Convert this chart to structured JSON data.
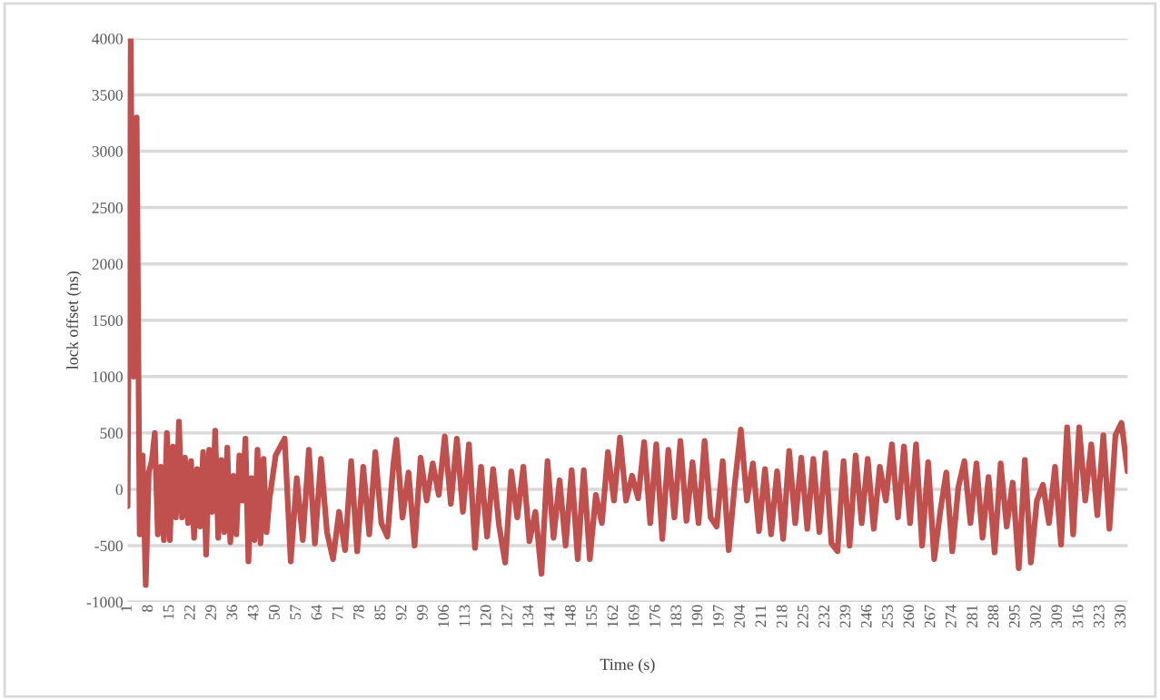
{
  "chart_data": {
    "type": "line",
    "xlabel": "Time (s)",
    "ylabel": "lock offset (ns)",
    "x": [
      1,
      2,
      3,
      4,
      5,
      6,
      7,
      8,
      9,
      10,
      11,
      12,
      13,
      14,
      15,
      16,
      17,
      18,
      19,
      20,
      21,
      22,
      23,
      24,
      25,
      26,
      27,
      28,
      29,
      30,
      31,
      32,
      33,
      34,
      35,
      36,
      37,
      38,
      39,
      40,
      41,
      42,
      43,
      44,
      45,
      46,
      47,
      48,
      50,
      53,
      55,
      57,
      59,
      61,
      63,
      65,
      67,
      69,
      71,
      73,
      75,
      77,
      79,
      81,
      83,
      85,
      87,
      89,
      90,
      92,
      94,
      96,
      98,
      100,
      102,
      104,
      106,
      108,
      110,
      112,
      114,
      116,
      118,
      120,
      122,
      124,
      126,
      128,
      130,
      132,
      134,
      136,
      138,
      140,
      142,
      144,
      146,
      148,
      150,
      152,
      154,
      156,
      158,
      160,
      162,
      164,
      166,
      168,
      170,
      172,
      174,
      176,
      178,
      180,
      182,
      184,
      186,
      188,
      190,
      192,
      194,
      196,
      198,
      200,
      202,
      204,
      206,
      208,
      210,
      212,
      214,
      216,
      218,
      220,
      222,
      224,
      226,
      228,
      230,
      232,
      234,
      236,
      238,
      240,
      242,
      244,
      246,
      248,
      250,
      252,
      254,
      256,
      258,
      260,
      262,
      264,
      266,
      268,
      270,
      272,
      274,
      276,
      278,
      280,
      282,
      284,
      286,
      288,
      290,
      292,
      294,
      296,
      298,
      300,
      302,
      304,
      306,
      308,
      310,
      312,
      314,
      316,
      318,
      320,
      322,
      324,
      326,
      328,
      330,
      332
    ],
    "series": [
      {
        "color": "#c0504d",
        "values": [
          -150,
          4000,
          1000,
          3300,
          -400,
          300,
          -850,
          150,
          250,
          500,
          -400,
          200,
          -450,
          500,
          -450,
          380,
          -250,
          600,
          -250,
          280,
          -300,
          250,
          -430,
          180,
          -330,
          330,
          -580,
          350,
          -200,
          520,
          -430,
          260,
          -380,
          370,
          -470,
          120,
          -400,
          300,
          -100,
          450,
          -640,
          100,
          -450,
          350,
          -480,
          270,
          -380,
          -80,
          300,
          450,
          -640,
          100,
          -450,
          350,
          -480,
          270,
          -380,
          -620,
          -200,
          -540,
          250,
          -550,
          200,
          -400,
          330,
          -300,
          -420,
          230,
          440,
          -250,
          150,
          -500,
          280,
          -100,
          230,
          -50,
          470,
          -130,
          450,
          -200,
          400,
          -520,
          200,
          -420,
          180,
          -330,
          -650,
          160,
          -250,
          200,
          -460,
          -200,
          -750,
          250,
          -430,
          80,
          -500,
          170,
          -620,
          170,
          -620,
          -50,
          -300,
          330,
          -100,
          460,
          -100,
          120,
          -80,
          420,
          -300,
          400,
          -440,
          350,
          -250,
          430,
          -280,
          240,
          -300,
          430,
          -250,
          -330,
          250,
          -540,
          50,
          530,
          -100,
          230,
          -370,
          180,
          -400,
          160,
          -440,
          340,
          -300,
          280,
          -350,
          270,
          -380,
          320,
          -480,
          -550,
          250,
          -500,
          300,
          -300,
          270,
          -350,
          200,
          -100,
          400,
          -250,
          380,
          -300,
          400,
          -500,
          240,
          -620,
          -200,
          150,
          -550,
          20,
          250,
          -300,
          230,
          -430,
          110,
          -560,
          230,
          -330,
          60,
          -700,
          260,
          -650,
          -100,
          40,
          -300,
          200,
          -490,
          550,
          -400,
          550,
          -100,
          400,
          -230,
          480,
          -350,
          480,
          590,
          160
        ]
      }
    ],
    "xlim": [
      1,
      332
    ],
    "xticks": [
      1,
      8,
      15,
      22,
      29,
      36,
      43,
      50,
      57,
      64,
      71,
      78,
      85,
      92,
      99,
      106,
      113,
      120,
      127,
      134,
      141,
      148,
      155,
      162,
      169,
      176,
      183,
      190,
      197,
      204,
      211,
      218,
      225,
      232,
      239,
      246,
      253,
      260,
      267,
      274,
      281,
      288,
      295,
      302,
      309,
      316,
      323,
      330
    ],
    "ylim": [
      -1000,
      4000
    ],
    "yticks": [
      -1000,
      -500,
      0,
      500,
      1000,
      1500,
      2000,
      2500,
      3000,
      3500,
      4000
    ],
    "grid": "y",
    "legend": false,
    "marker": "none",
    "line_style": "solid"
  }
}
